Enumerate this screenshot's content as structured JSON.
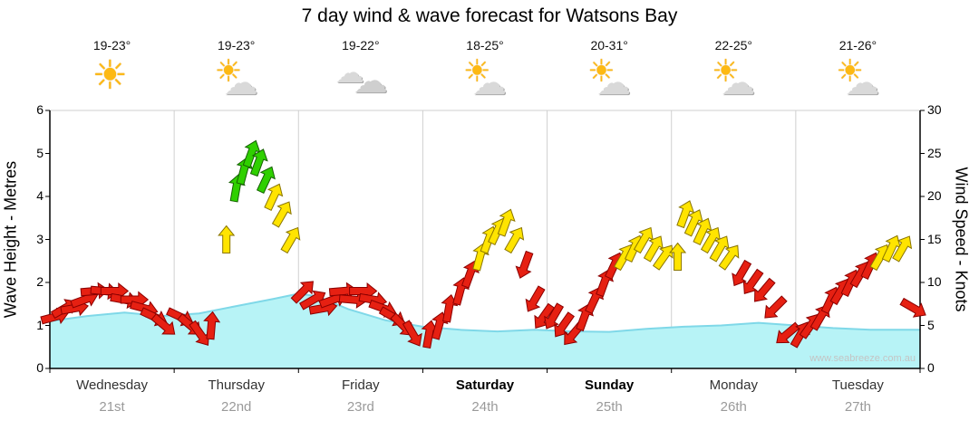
{
  "title": "7 day wind & wave forecast for Watsons Bay",
  "watermark": "www.seabreeze.com.au",
  "days": [
    {
      "name": "Wednesday",
      "date": "21st",
      "temp": "19-23°",
      "icon": "sunny",
      "bold": false
    },
    {
      "name": "Thursday",
      "date": "22nd",
      "temp": "19-23°",
      "icon": "sun-cloud",
      "bold": false
    },
    {
      "name": "Friday",
      "date": "23rd",
      "temp": "19-22°",
      "icon": "cloudy",
      "bold": false
    },
    {
      "name": "Saturday",
      "date": "24th",
      "temp": "18-25°",
      "icon": "sun-cloud",
      "bold": true
    },
    {
      "name": "Sunday",
      "date": "25th",
      "temp": "20-31°",
      "icon": "sun-cloud",
      "bold": true
    },
    {
      "name": "Monday",
      "date": "26th",
      "temp": "22-25°",
      "icon": "sun-cloud",
      "bold": false
    },
    {
      "name": "Tuesday",
      "date": "27th",
      "temp": "21-26°",
      "icon": "sun-cloud",
      "bold": false
    }
  ],
  "axes": {
    "left": {
      "label": "Wave Height - Metres",
      "ticks": [
        0,
        1,
        2,
        3,
        4,
        5,
        6
      ],
      "range": [
        0,
        6
      ]
    },
    "right": {
      "label": "Wind Speed - Knots",
      "ticks": [
        0,
        5,
        10,
        15,
        20,
        25,
        30
      ],
      "range": [
        0,
        30
      ]
    }
  },
  "colors": {
    "red": "#e62012",
    "red_stroke": "#8a0000",
    "yellow": "#ffe400",
    "yellow_stroke": "#8a7500",
    "green": "#2fd000",
    "green_stroke": "#156000",
    "wave_fill": "#b7f3f6",
    "wave_stroke": "#7fd8e8",
    "grid": "#d0d0d0",
    "axis": "#000000"
  },
  "chart_data": {
    "type": "area+wind-arrows",
    "title": "7 day wind & wave forecast for Watsons Bay",
    "xlabel_days": [
      "Wednesday 21st",
      "Thursday 22nd",
      "Friday 23rd",
      "Saturday 24th",
      "Sunday 25th",
      "Monday 26th",
      "Tuesday 27th"
    ],
    "ylabel_left": "Wave Height - Metres",
    "ylabel_right": "Wind Speed - Knots",
    "ylim_left": [
      0,
      6
    ],
    "ylim_right": [
      0,
      30
    ],
    "grid": "vertical-day-boundaries",
    "wave_points_columns": [
      "day_x",
      "height_m"
    ],
    "wave_points": [
      [
        0,
        1.1
      ],
      [
        0.3,
        1.22
      ],
      [
        0.6,
        1.3
      ],
      [
        0.9,
        1.22
      ],
      [
        1.2,
        1.28
      ],
      [
        1.5,
        1.45
      ],
      [
        1.8,
        1.62
      ],
      [
        2.0,
        1.74
      ],
      [
        2.15,
        1.68
      ],
      [
        2.4,
        1.38
      ],
      [
        2.7,
        1.12
      ],
      [
        3.0,
        0.97
      ],
      [
        3.3,
        0.9
      ],
      [
        3.6,
        0.86
      ],
      [
        3.9,
        0.9
      ],
      [
        4.2,
        0.86
      ],
      [
        4.5,
        0.85
      ],
      [
        4.8,
        0.92
      ],
      [
        5.1,
        0.97
      ],
      [
        5.4,
        1.0
      ],
      [
        5.7,
        1.06
      ],
      [
        6.0,
        1.0
      ],
      [
        6.3,
        0.94
      ],
      [
        6.6,
        0.9
      ],
      [
        7,
        0.9
      ]
    ],
    "wind_arrows_columns": [
      "day",
      "t_fraction",
      "knots",
      "color",
      "dir_deg"
    ],
    "wind_arrows": [
      [
        0,
        0.04,
        6,
        "red",
        75
      ],
      [
        0,
        0.12,
        7,
        "red",
        60
      ],
      [
        0,
        0.2,
        7,
        "red",
        80
      ],
      [
        0,
        0.28,
        8,
        "red",
        70
      ],
      [
        0,
        0.36,
        9,
        "red",
        85
      ],
      [
        0,
        0.44,
        9,
        "red",
        95
      ],
      [
        0,
        0.52,
        9,
        "red",
        90
      ],
      [
        0,
        0.6,
        8,
        "red",
        100
      ],
      [
        0,
        0.68,
        8,
        "red",
        90
      ],
      [
        0,
        0.76,
        7,
        "red",
        105
      ],
      [
        0,
        0.84,
        6,
        "red",
        115
      ],
      [
        0,
        0.92,
        5,
        "red",
        130
      ],
      [
        1,
        0.05,
        6,
        "red",
        115
      ],
      [
        1,
        0.13,
        5,
        "red",
        130
      ],
      [
        1,
        0.21,
        4,
        "red",
        145
      ],
      [
        1,
        0.3,
        5,
        "red",
        5
      ],
      [
        1,
        0.42,
        15,
        "yellow",
        0
      ],
      [
        1,
        0.5,
        21,
        "green",
        10
      ],
      [
        1,
        0.56,
        23,
        "green",
        15
      ],
      [
        1,
        0.62,
        25,
        "green",
        20
      ],
      [
        1,
        0.68,
        24,
        "green",
        20
      ],
      [
        1,
        0.74,
        22,
        "green",
        25
      ],
      [
        1,
        0.8,
        20,
        "yellow",
        25
      ],
      [
        1,
        0.87,
        18,
        "yellow",
        30
      ],
      [
        1,
        0.94,
        15,
        "yellow",
        30
      ],
      [
        2,
        0.04,
        9,
        "red",
        45
      ],
      [
        2,
        0.12,
        8,
        "red",
        60
      ],
      [
        2,
        0.2,
        7,
        "red",
        80
      ],
      [
        2,
        0.28,
        8,
        "red",
        70
      ],
      [
        2,
        0.36,
        9,
        "red",
        85
      ],
      [
        2,
        0.44,
        8,
        "red",
        95
      ],
      [
        2,
        0.52,
        9,
        "red",
        90
      ],
      [
        2,
        0.6,
        8,
        "red",
        100
      ],
      [
        2,
        0.68,
        7,
        "red",
        110
      ],
      [
        2,
        0.76,
        6,
        "red",
        120
      ],
      [
        2,
        0.84,
        5,
        "red",
        135
      ],
      [
        2,
        0.92,
        4,
        "red",
        150
      ],
      [
        3,
        0.05,
        4,
        "red",
        10
      ],
      [
        3,
        0.13,
        5,
        "red",
        15
      ],
      [
        3,
        0.21,
        7,
        "red",
        10
      ],
      [
        3,
        0.3,
        9,
        "red",
        15
      ],
      [
        3,
        0.38,
        11,
        "red",
        20
      ],
      [
        3,
        0.46,
        13,
        "yellow",
        15
      ],
      [
        3,
        0.53,
        15,
        "yellow",
        20
      ],
      [
        3,
        0.6,
        16,
        "yellow",
        25
      ],
      [
        3,
        0.67,
        17,
        "yellow",
        20
      ],
      [
        3,
        0.74,
        15,
        "yellow",
        30
      ],
      [
        3,
        0.82,
        12,
        "red",
        200
      ],
      [
        3,
        0.9,
        8,
        "red",
        210
      ],
      [
        3,
        0.97,
        6,
        "red",
        215
      ],
      [
        4,
        0.05,
        6,
        "red",
        210
      ],
      [
        4,
        0.13,
        5,
        "red",
        215
      ],
      [
        4,
        0.21,
        4,
        "red",
        220
      ],
      [
        4,
        0.3,
        6,
        "red",
        20
      ],
      [
        4,
        0.38,
        8,
        "red",
        25
      ],
      [
        4,
        0.46,
        10,
        "red",
        20
      ],
      [
        4,
        0.54,
        12,
        "red",
        25
      ],
      [
        4,
        0.62,
        13,
        "yellow",
        30
      ],
      [
        4,
        0.7,
        14,
        "yellow",
        25
      ],
      [
        4,
        0.78,
        15,
        "yellow",
        30
      ],
      [
        4,
        0.86,
        14,
        "yellow",
        30
      ],
      [
        4,
        0.94,
        13,
        "yellow",
        35
      ],
      [
        5,
        0.05,
        13,
        "yellow",
        0
      ],
      [
        5,
        0.11,
        18,
        "yellow",
        20
      ],
      [
        5,
        0.18,
        17,
        "yellow",
        25
      ],
      [
        5,
        0.25,
        16,
        "yellow",
        25
      ],
      [
        5,
        0.32,
        15,
        "yellow",
        30
      ],
      [
        5,
        0.39,
        14,
        "yellow",
        30
      ],
      [
        5,
        0.47,
        13,
        "yellow",
        35
      ],
      [
        5,
        0.56,
        11,
        "red",
        210
      ],
      [
        5,
        0.65,
        10,
        "red",
        215
      ],
      [
        5,
        0.74,
        9,
        "red",
        220
      ],
      [
        5,
        0.83,
        7,
        "red",
        225
      ],
      [
        5,
        0.93,
        4,
        "red",
        230
      ],
      [
        6,
        0.04,
        4,
        "red",
        30
      ],
      [
        6,
        0.12,
        5,
        "red",
        35
      ],
      [
        6,
        0.2,
        6,
        "red",
        30
      ],
      [
        6,
        0.28,
        8,
        "red",
        25
      ],
      [
        6,
        0.36,
        9,
        "red",
        30
      ],
      [
        6,
        0.44,
        10,
        "red",
        25
      ],
      [
        6,
        0.52,
        11,
        "red",
        30
      ],
      [
        6,
        0.6,
        12,
        "red",
        25
      ],
      [
        6,
        0.68,
        13,
        "yellow",
        30
      ],
      [
        6,
        0.77,
        14,
        "yellow",
        25
      ],
      [
        6,
        0.86,
        14,
        "yellow",
        30
      ],
      [
        6,
        0.95,
        7,
        "red",
        120
      ]
    ]
  }
}
